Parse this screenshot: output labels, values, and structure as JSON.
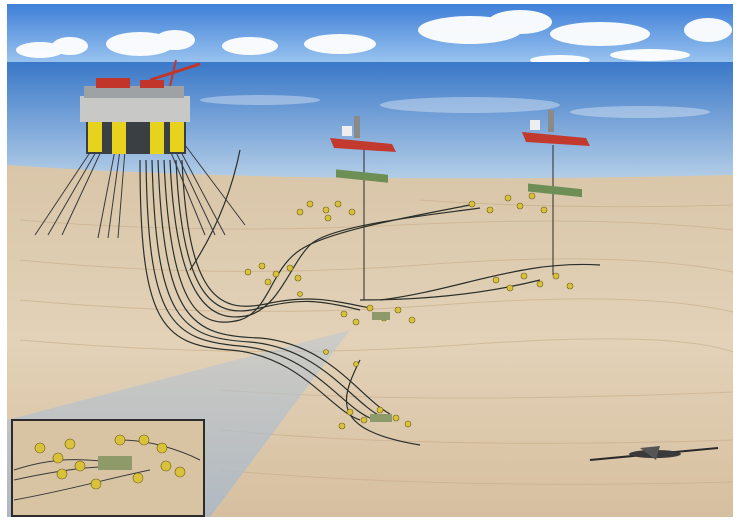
{
  "scene": {
    "description_visible_text": "",
    "colors": {
      "sky_top": "#3f7fd8",
      "sky_bottom": "#9ec7f0",
      "sea_top": "#3a78c8",
      "sea_bottom": "#aac8e6",
      "seabed_light": "#e6d6bf",
      "seabed_dark": "#c9ae8c",
      "flowline": "#2a2f2a",
      "manifold": "#d9c23a",
      "platform_deck": "#c8c9c6",
      "platform_leg": "#e7d21e",
      "platform_red": "#c2352a",
      "vessel_hull": "#c23a2e",
      "vessel_deck": "#6d8f55",
      "shadow_corridor": "#a9b8c8",
      "inset_border": "#2c2c2c"
    },
    "icons": [
      "semi-submersible-platform-icon",
      "fpso-vessel-icon",
      "subsea-manifold-icon",
      "auv-icon"
    ]
  }
}
